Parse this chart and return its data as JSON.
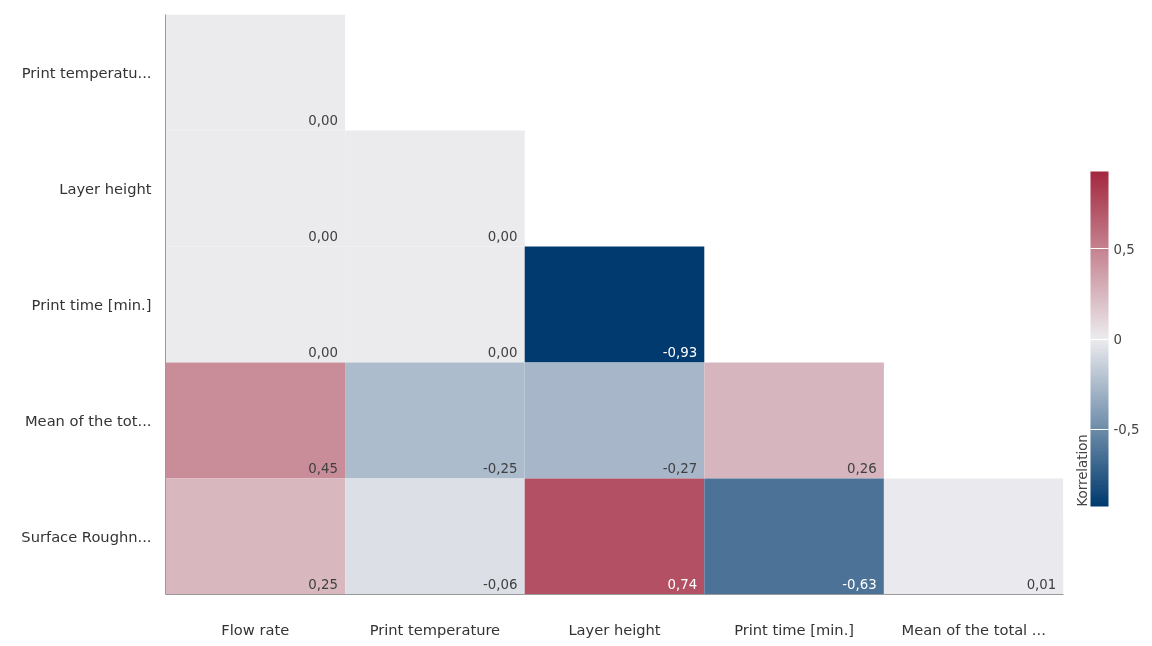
{
  "chart_data": {
    "type": "heatmap",
    "categories": [
      "Flow rate",
      "Print temperature",
      "Layer height",
      "Print time [min.]",
      "Mean of the total ..."
    ],
    "y_categories": [
      "Print temperatu...",
      "Layer height",
      "Print time [min.]",
      "Mean of the tot...",
      "Surface Roughn..."
    ],
    "cells": [
      [
        0.0,
        null,
        null,
        null,
        null
      ],
      [
        0.0,
        0.0,
        null,
        null,
        null
      ],
      [
        0.0,
        0.0,
        -0.93,
        null,
        null
      ],
      [
        0.45,
        -0.25,
        -0.27,
        0.26,
        null
      ],
      [
        0.25,
        -0.06,
        0.74,
        -0.63,
        0.01
      ]
    ],
    "cell_labels": [
      [
        "0,00",
        null,
        null,
        null,
        null
      ],
      [
        "0,00",
        "0,00",
        null,
        null,
        null
      ],
      [
        "0,00",
        "0,00",
        "-0,93",
        null,
        null
      ],
      [
        "0,45",
        "-0,25",
        "-0,27",
        "0,26",
        null
      ],
      [
        "0,25",
        "-0,06",
        "0,74",
        "-0,63",
        "0,01"
      ]
    ],
    "clabel": "Korrelation",
    "clim": [
      -0.93,
      0.93
    ],
    "cticks": [
      {
        "value": -0.5,
        "label": "-0,5"
      },
      0,
      {
        "value": 0.5,
        "label": "0,5"
      }
    ]
  }
}
